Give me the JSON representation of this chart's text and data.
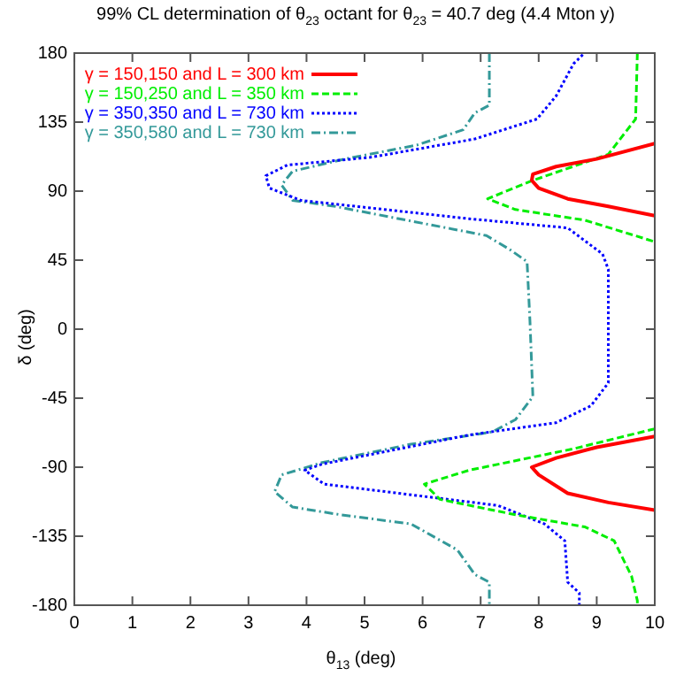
{
  "chart_data": {
    "type": "line",
    "title": "99% CL determination of θ$_{23}$ octant for θ$_{23}$ = 40.7 deg (4.4 Mton y)",
    "xlabel": "θ$_{13}$ (deg)",
    "ylabel": "δ (deg)",
    "xlim": [
      0,
      10
    ],
    "xticks": [
      0,
      1,
      2,
      3,
      4,
      5,
      6,
      7,
      8,
      9,
      10
    ],
    "ylim": [
      -180,
      180
    ],
    "yticks": [
      -180,
      -135,
      -90,
      -45,
      0,
      45,
      90,
      135,
      180
    ],
    "grid": false,
    "legend": "top left",
    "marker": "none",
    "series": [
      {
        "name": "γ = 150,150 and L = 300 km",
        "color": "#ff0000",
        "line_style": "solid",
        "x": [
          10,
          9,
          8.3,
          7.9,
          7.88,
          8.0,
          8.5,
          9.2,
          10,
          null,
          10,
          9,
          8.3,
          7.88,
          8.0,
          8.5,
          9.2,
          10
        ],
        "values": [
          121,
          111,
          106,
          101,
          97,
          92,
          85,
          80,
          74,
          null,
          -70,
          -77,
          -84,
          -90,
          -95,
          -107,
          -113,
          -118
        ]
      },
      {
        "name": "γ = 150,250 and L = 350 km",
        "color": "#00ee00",
        "line_style": "dashed",
        "x": [
          9.7,
          9.67,
          9.2,
          7.9,
          7.12,
          7.6,
          8.8,
          10,
          null,
          10,
          8.6,
          6.8,
          6.03,
          6.3,
          7.6,
          8.8,
          9.3,
          9.6,
          9.7,
          9.7
        ],
        "values": [
          180,
          137,
          114,
          97,
          85,
          78,
          71,
          57,
          null,
          -65,
          -78,
          -92,
          -101,
          -111,
          -121,
          -129,
          -138,
          -161,
          -177,
          -180
        ]
      },
      {
        "name": "γ = 350,350 and L = 730 km",
        "color": "#0000ff",
        "line_style": "dotted",
        "x": [
          8.76,
          8.6,
          8.3,
          7.97,
          6.9,
          5.1,
          3.67,
          3.3,
          3.36,
          3.9,
          6.8,
          8.5,
          9.1,
          9.2,
          9.2,
          9.2,
          8.9,
          8.3,
          6.8,
          4.27,
          3.97,
          4.3,
          7.3,
          8.1,
          8.45,
          8.5,
          8.7,
          8.7
        ],
        "values": [
          179,
          173,
          152,
          137,
          124,
          112,
          107,
          100,
          92,
          84,
          72,
          66,
          49,
          39,
          1,
          -35,
          -50,
          -61,
          -69,
          -88,
          -92,
          -101,
          -115,
          -127,
          -138,
          -165,
          -172,
          -180
        ]
      },
      {
        "name": "γ = 350,580 and L = 730 km",
        "color": "#339999",
        "line_style": "dashdot",
        "x": [
          7.15,
          7.15,
          6.9,
          6.7,
          5.9,
          4.67,
          3.76,
          3.57,
          3.76,
          4.5,
          7.1,
          7.5,
          7.8,
          7.85,
          7.9,
          7.6,
          7.2,
          5.8,
          4.27,
          3.57,
          3.45,
          3.76,
          4.58,
          5.8,
          6.6,
          6.9,
          7.15,
          7.15
        ],
        "values": [
          180,
          146,
          141,
          130,
          120,
          111,
          103,
          94,
          84,
          80,
          61,
          52,
          44,
          5,
          -44,
          -59,
          -67,
          -75,
          -87,
          -95,
          -106,
          -116,
          -121,
          -127,
          -144,
          -160,
          -165,
          -180
        ]
      }
    ]
  }
}
